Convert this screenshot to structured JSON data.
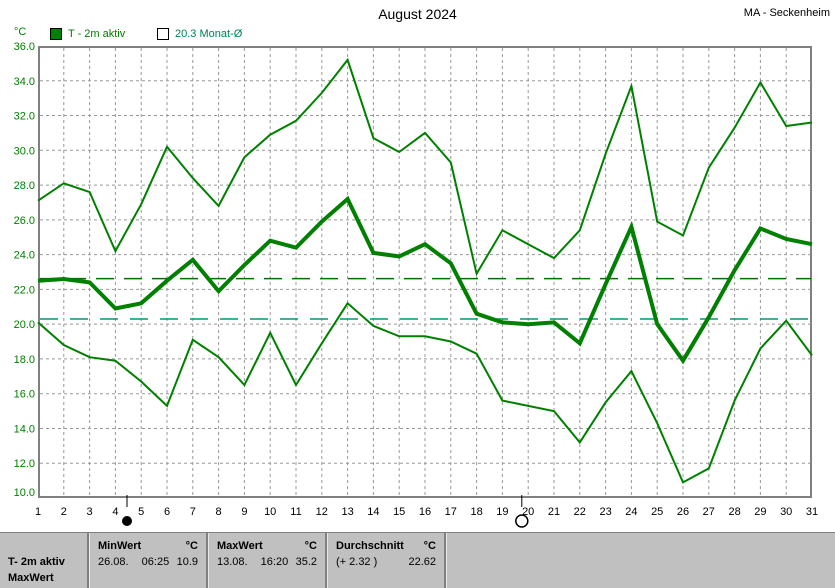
{
  "header": {
    "title": "August 2024",
    "station": "MA - Seckenheim"
  },
  "y_axis_unit": "°C",
  "legend": {
    "series_active": "T - 2m aktiv",
    "month_avg": "20.3 Monat-Ø"
  },
  "chart_data": {
    "type": "line",
    "title": "August 2024",
    "ylabel": "°C",
    "ylim": [
      10,
      36
    ],
    "ytick_step": 2,
    "grid": true,
    "line_color": "#008000",
    "x": [
      1,
      2,
      3,
      4,
      5,
      6,
      7,
      8,
      9,
      10,
      11,
      12,
      13,
      14,
      15,
      16,
      17,
      18,
      19,
      20,
      21,
      22,
      23,
      24,
      25,
      26,
      27,
      28,
      29,
      30,
      31
    ],
    "series": [
      {
        "name": "daily-max",
        "thick": false,
        "values": [
          27.1,
          28.1,
          27.6,
          24.2,
          26.9,
          30.2,
          28.4,
          26.8,
          29.6,
          30.9,
          31.7,
          33.3,
          35.2,
          30.7,
          29.9,
          31.0,
          29.3,
          22.9,
          25.4,
          24.6,
          23.8,
          25.4,
          29.8,
          33.7,
          25.9,
          25.1,
          29.0,
          31.3,
          33.9,
          31.4,
          31.6
        ]
      },
      {
        "name": "daily-mean-t2m-aktiv",
        "thick": true,
        "values": [
          22.5,
          22.6,
          22.4,
          20.9,
          21.2,
          22.5,
          23.7,
          21.9,
          23.4,
          24.8,
          24.4,
          25.9,
          27.2,
          24.1,
          23.9,
          24.6,
          23.5,
          20.6,
          20.1,
          20.0,
          20.1,
          18.9,
          22.3,
          25.6,
          20.0,
          17.9,
          20.4,
          23.1,
          25.5,
          24.9,
          24.6
        ]
      },
      {
        "name": "daily-min",
        "thick": false,
        "values": [
          20.1,
          18.8,
          18.1,
          17.9,
          16.7,
          15.3,
          19.1,
          18.1,
          16.5,
          19.5,
          16.5,
          18.9,
          21.2,
          19.9,
          19.3,
          19.3,
          19.0,
          18.3,
          15.6,
          15.3,
          15.0,
          13.2,
          15.5,
          17.3,
          14.3,
          10.9,
          11.7,
          15.6,
          18.6,
          20.2,
          18.2
        ]
      }
    ],
    "reference_lines": [
      {
        "name": "durchschnitt",
        "value": 22.62,
        "color": "#007000",
        "dash": "18 10"
      },
      {
        "name": "monatsmittel",
        "value": 20.3,
        "color": "#009973",
        "dash": "18 12"
      }
    ],
    "moon_markers": [
      {
        "day": 4.45,
        "phase": "new"
      },
      {
        "day": 19.75,
        "phase": "full"
      }
    ]
  },
  "footer": {
    "series_label": "T- 2m aktiv",
    "series_label2": "MaxWert",
    "min": {
      "header": "MinWert",
      "unit": "°C",
      "date": "26.08.",
      "time": "06:25",
      "value": "10.9"
    },
    "max": {
      "header": "MaxWert",
      "unit": "°C",
      "date": "13.08.",
      "time": "16:20",
      "value": "35.2"
    },
    "avg": {
      "header": "Durchschnitt",
      "unit": "°C",
      "delta": "(+ 2.32 )",
      "value": "22.62"
    }
  }
}
